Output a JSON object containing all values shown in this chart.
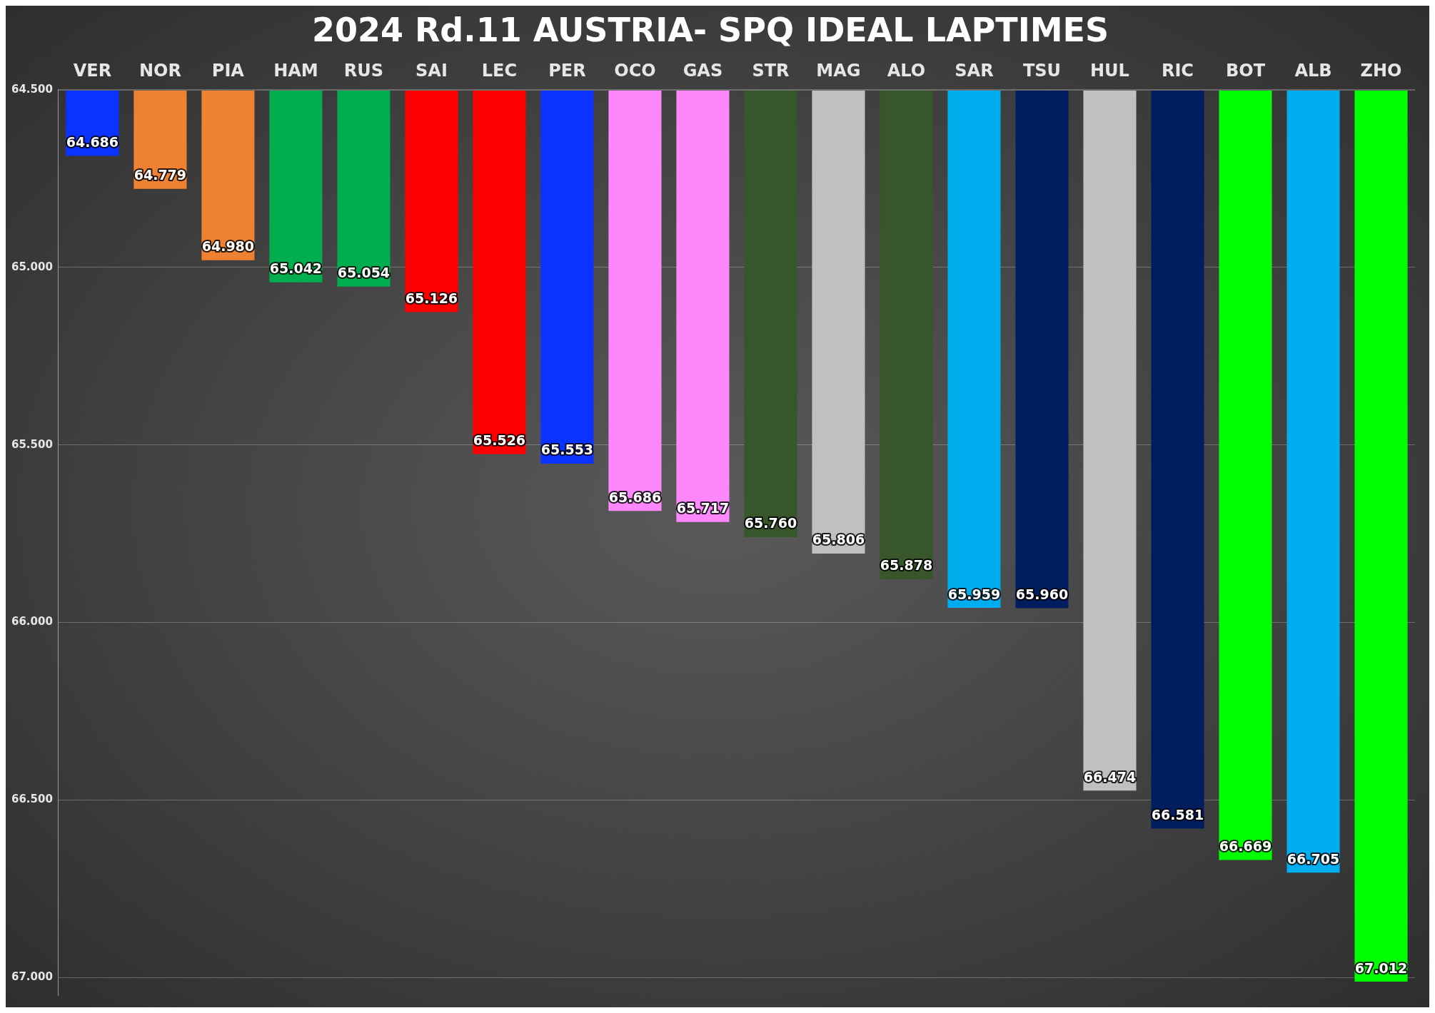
{
  "chart_data": {
    "type": "bar",
    "title": "2024 Rd.11 AUSTRIA- SPQ IDEAL LAPTIMES",
    "categories": [
      "VER",
      "NOR",
      "PIA",
      "HAM",
      "RUS",
      "SAI",
      "LEC",
      "PER",
      "OCO",
      "GAS",
      "STR",
      "MAG",
      "ALO",
      "SAR",
      "TSU",
      "HUL",
      "RIC",
      "BOT",
      "ALB",
      "ZHO"
    ],
    "values": [
      64.686,
      64.779,
      64.98,
      65.042,
      65.054,
      65.126,
      65.526,
      65.553,
      65.686,
      65.717,
      65.76,
      65.806,
      65.878,
      65.959,
      65.96,
      66.474,
      66.581,
      66.669,
      66.705,
      67.012
    ],
    "colors": [
      "#0a33ff",
      "#ef8133",
      "#ef8133",
      "#00ae4f",
      "#00ae4f",
      "#ff0000",
      "#ff0000",
      "#0a33ff",
      "#ff87fc",
      "#ff87fc",
      "#37562a",
      "#c0c0c0",
      "#37562a",
      "#00aeef",
      "#001e5e",
      "#c0c0c0",
      "#001e5e",
      "#00ff00",
      "#00aeef",
      "#00ff00"
    ],
    "ylim": [
      67.05,
      64.5
    ],
    "yticks": [
      {
        "value": 64.5,
        "label": "64.500"
      },
      {
        "value": 65,
        "label": "65.000"
      },
      {
        "value": 65.5,
        "label": "65.500"
      },
      {
        "value": 66,
        "label": "66.000"
      },
      {
        "value": 66.5,
        "label": "66.500"
      },
      {
        "value": 67,
        "label": "67.000"
      }
    ],
    "value_labels": [
      "64.686",
      "64.779",
      "64.980",
      "65.042",
      "65.054",
      "65.126",
      "65.526",
      "65.553",
      "65.686",
      "65.717",
      "65.760",
      "65.806",
      "65.878",
      "65.959",
      "65.960",
      "66.474",
      "66.581",
      "66.669",
      "66.705",
      "67.012"
    ],
    "grid": "y"
  }
}
